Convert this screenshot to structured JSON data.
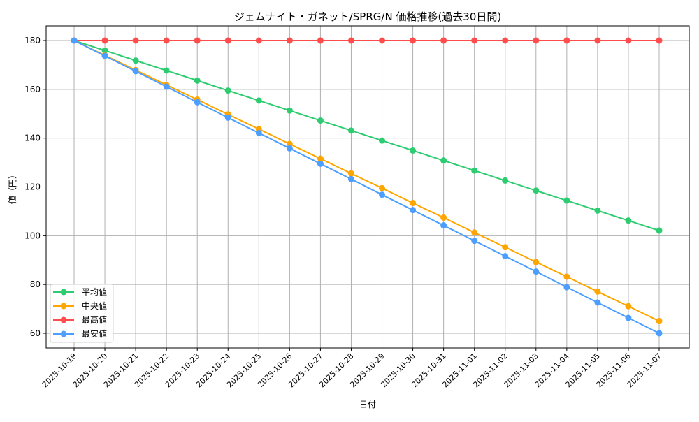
{
  "chart_data": {
    "type": "line",
    "title": "ジェムナイト・ガネット/SPRG/N 価格推移(過去30日間)",
    "xlabel": "日付",
    "ylabel": "値（円）",
    "ylim": [
      54,
      186
    ],
    "yticks": [
      60,
      80,
      100,
      120,
      140,
      160,
      180
    ],
    "grid": true,
    "legend_position": "lower left",
    "categories": [
      "2025-10-19",
      "2025-10-20",
      "2025-10-21",
      "2025-10-22",
      "2025-10-23",
      "2025-10-24",
      "2025-10-25",
      "2025-10-26",
      "2025-10-27",
      "2025-10-28",
      "2025-10-29",
      "2025-10-30",
      "2025-10-31",
      "2025-11-01",
      "2025-11-02",
      "2025-11-03",
      "2025-11-04",
      "2025-11-05",
      "2025-11-06",
      "2025-11-07"
    ],
    "series": [
      {
        "name": "平均値",
        "color": "#2ecc71",
        "values": [
          180,
          175.9,
          171.8,
          167.7,
          163.6,
          159.5,
          155.4,
          151.3,
          147.2,
          143.1,
          139.0,
          134.9,
          130.8,
          126.7,
          122.6,
          118.5,
          114.4,
          110.3,
          106.2,
          102.1
        ]
      },
      {
        "name": "中央値",
        "color": "#ffa500",
        "values": [
          180,
          173.9,
          167.9,
          161.8,
          155.8,
          149.7,
          143.7,
          137.6,
          131.6,
          125.5,
          119.5,
          113.4,
          107.4,
          101.3,
          95.3,
          89.2,
          83.2,
          77.1,
          71.1,
          65.0
        ]
      },
      {
        "name": "最高値",
        "color": "#ff4d4d",
        "values": [
          180,
          180,
          180,
          180,
          180,
          180,
          180,
          180,
          180,
          180,
          180,
          180,
          180,
          180,
          180,
          180,
          180,
          180,
          180,
          180
        ]
      },
      {
        "name": "最安値",
        "color": "#4d9fff",
        "values": [
          180,
          173.7,
          167.4,
          161.1,
          154.7,
          148.4,
          142.1,
          135.8,
          129.5,
          123.2,
          116.8,
          110.5,
          104.2,
          97.9,
          91.6,
          85.3,
          78.9,
          72.6,
          66.3,
          60.0
        ]
      }
    ]
  }
}
